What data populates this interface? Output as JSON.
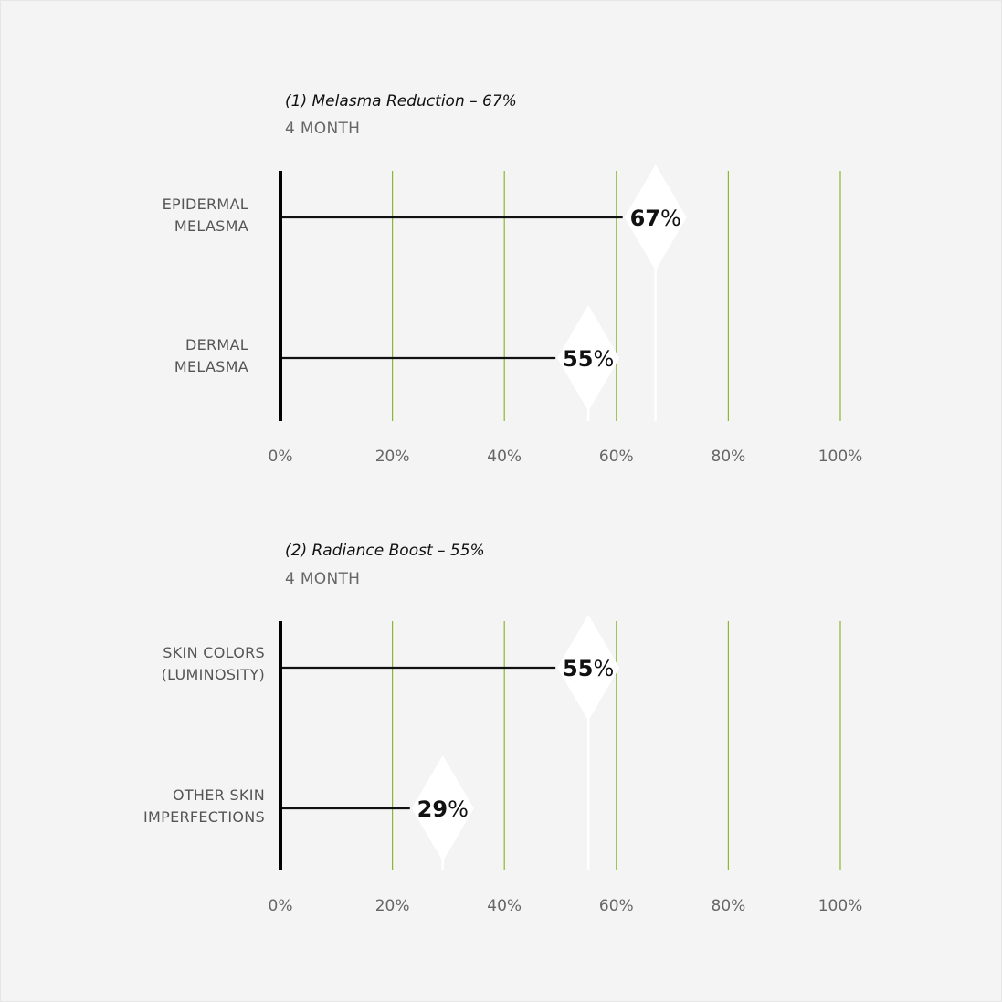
{
  "chart_data": [
    {
      "type": "bar",
      "title": "(1) Melasma Reduction – 67%",
      "subtitle": "4 MONTH",
      "categories": [
        "EPIDERMAL\nMELASMA",
        "DERMAL\nMELASMA"
      ],
      "values": [
        67,
        55
      ],
      "value_unit": "%",
      "xlim": [
        0,
        100
      ],
      "ticks": [
        0,
        20,
        40,
        60,
        80,
        100
      ],
      "tick_labels": [
        "0%",
        "20%",
        "40%",
        "60%",
        "80%",
        "100%"
      ],
      "grid": true,
      "colors": {
        "grid": "#8ab832",
        "axis": "#000000",
        "bar": "#111111",
        "marker": "#ffffff"
      }
    },
    {
      "type": "bar",
      "title": "(2) Radiance Boost – 55%",
      "subtitle": "4 MONTH",
      "categories": [
        "SKIN COLORS\n(LUMINOSITY)",
        "OTHER SKIN\nIMPERFECTIONS"
      ],
      "values": [
        55,
        29
      ],
      "value_unit": "%",
      "xlim": [
        0,
        100
      ],
      "ticks": [
        0,
        20,
        40,
        60,
        80,
        100
      ],
      "tick_labels": [
        "0%",
        "20%",
        "40%",
        "60%",
        "80%",
        "100%"
      ],
      "grid": true,
      "colors": {
        "grid": "#8ab832",
        "axis": "#000000",
        "bar": "#111111",
        "marker": "#ffffff"
      }
    }
  ]
}
